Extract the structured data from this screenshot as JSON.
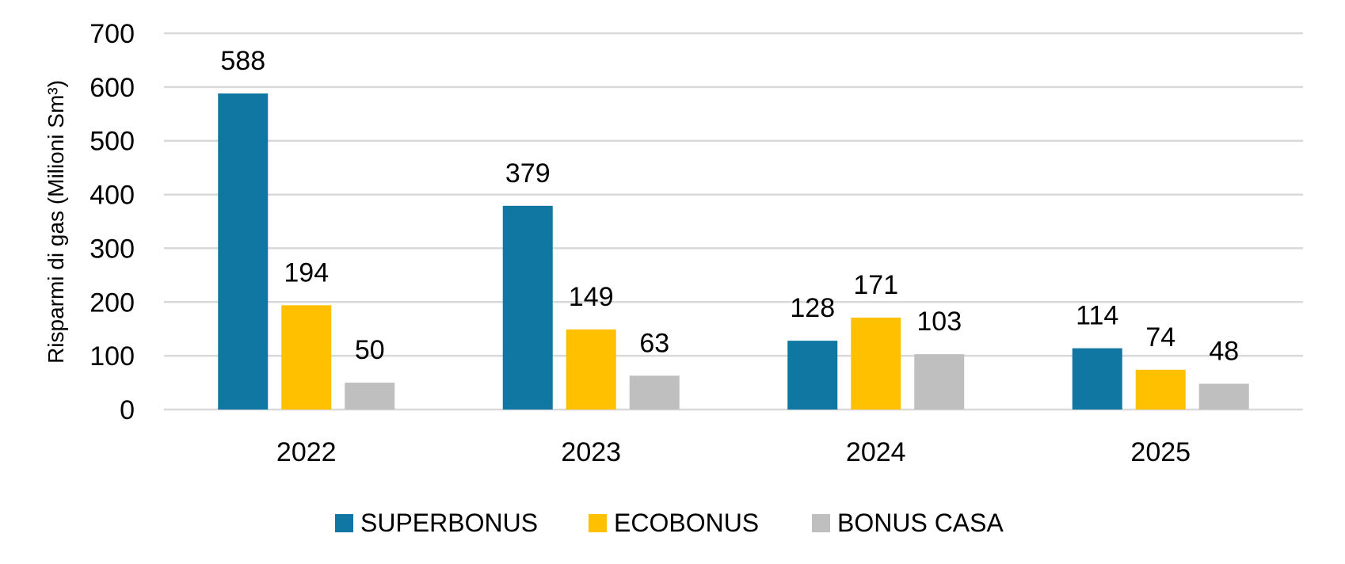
{
  "chart_data": {
    "type": "bar",
    "title": "",
    "xlabel": "",
    "ylabel": "Risparmi di gas (Milioni Sm³)",
    "ylim": [
      0,
      700
    ],
    "yticks": [
      0,
      100,
      200,
      300,
      400,
      500,
      600,
      700
    ],
    "categories": [
      "2022",
      "2023",
      "2024",
      "2025"
    ],
    "series": [
      {
        "name": "SUPERBONUS",
        "color": "#0f77a1",
        "values": [
          588,
          379,
          128,
          114
        ]
      },
      {
        "name": "ECOBONUS",
        "color": "#ffc000",
        "values": [
          194,
          149,
          171,
          74
        ]
      },
      {
        "name": "BONUS CASA",
        "color": "#bfbfbf",
        "values": [
          50,
          63,
          103,
          48
        ]
      }
    ],
    "grid": true,
    "legend": "bottom",
    "gridline_color": "#d9d9d9"
  }
}
